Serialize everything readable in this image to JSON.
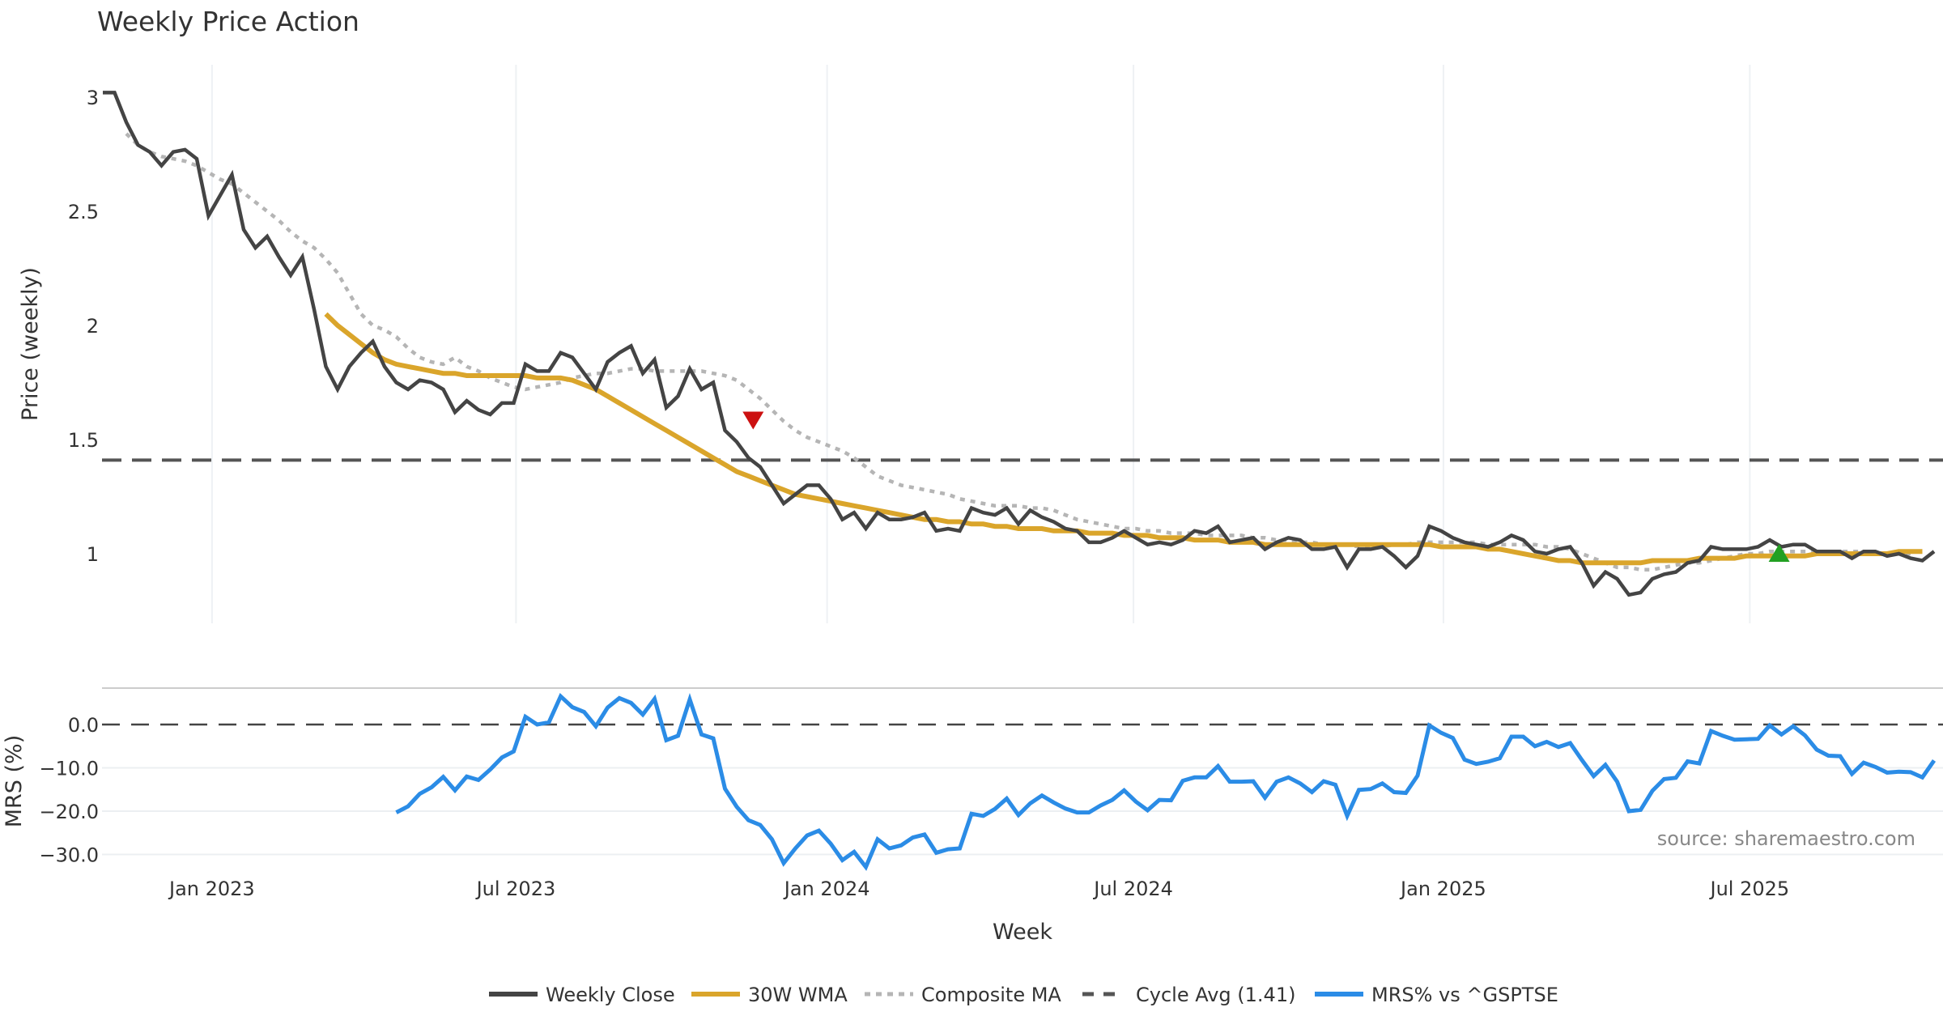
{
  "chart_data": {
    "type": "line",
    "title": "Weekly Price Action",
    "xlabel": "Week",
    "source": "source: sharemaestro.com",
    "start_week": "2022-10-24",
    "x_ticks": [
      {
        "label": "Jan 2023",
        "week": 9.3
      },
      {
        "label": "Jul 2023",
        "week": 35.2
      },
      {
        "label": "Jan 2024",
        "week": 61.7
      },
      {
        "label": "Jul 2024",
        "week": 87.8
      },
      {
        "label": "Jan 2025",
        "week": 114.2
      },
      {
        "label": "Jul 2025",
        "week": 140.3
      }
    ],
    "x_range": [
      0,
      157.4
    ],
    "price_panel": {
      "ylabel": "Price (weekly)",
      "ylim": [
        0.69,
        3.15
      ],
      "y_ticks": [
        {
          "label": "1",
          "value": 1
        },
        {
          "label": "1.5",
          "value": 1.5
        },
        {
          "label": "2",
          "value": 2
        },
        {
          "label": "2.5",
          "value": 2.5
        },
        {
          "label": "3",
          "value": 3
        }
      ],
      "series": [
        {
          "name": "Weekly Close",
          "color": "#444444",
          "style": "solid",
          "start": 0,
          "values": [
            3.02,
            3.02,
            2.89,
            2.79,
            2.76,
            2.7,
            2.76,
            2.77,
            2.73,
            2.48,
            2.57,
            2.66,
            2.42,
            2.34,
            2.39,
            2.3,
            2.22,
            2.3,
            2.07,
            1.82,
            1.72,
            1.82,
            1.88,
            1.93,
            1.82,
            1.75,
            1.72,
            1.76,
            1.75,
            1.72,
            1.62,
            1.67,
            1.63,
            1.61,
            1.66,
            1.66,
            1.83,
            1.8,
            1.8,
            1.88,
            1.86,
            1.79,
            1.72,
            1.84,
            1.88,
            1.91,
            1.79,
            1.85,
            1.64,
            1.69,
            1.81,
            1.72,
            1.75,
            1.54,
            1.49,
            1.42,
            1.38,
            1.3,
            1.22,
            1.26,
            1.3,
            1.3,
            1.24,
            1.15,
            1.18,
            1.11,
            1.18,
            1.15,
            1.15,
            1.16,
            1.18,
            1.1,
            1.11,
            1.1,
            1.2,
            1.18,
            1.17,
            1.2,
            1.13,
            1.19,
            1.16,
            1.14,
            1.11,
            1.1,
            1.05,
            1.05,
            1.07,
            1.1,
            1.07,
            1.04,
            1.05,
            1.04,
            1.06,
            1.1,
            1.09,
            1.12,
            1.05,
            1.06,
            1.07,
            1.02,
            1.05,
            1.07,
            1.06,
            1.02,
            1.02,
            1.03,
            0.94,
            1.02,
            1.02,
            1.03,
            0.99,
            0.94,
            0.99,
            1.12,
            1.1,
            1.07,
            1.05,
            1.04,
            1.03,
            1.05,
            1.08,
            1.06,
            1.01,
            1.0,
            1.02,
            1.03,
            0.96,
            0.86,
            0.92,
            0.89,
            0.82,
            0.83,
            0.89,
            0.91,
            0.92,
            0.96,
            0.97,
            1.03,
            1.02,
            1.02,
            1.02,
            1.03,
            1.06,
            1.03,
            1.04,
            1.04,
            1.01,
            1.01,
            1.01,
            0.98,
            1.01,
            1.01,
            0.99,
            1.0,
            0.98,
            0.97,
            1.01
          ]
        },
        {
          "name": "30W WMA",
          "color": "#DAA52B",
          "style": "solid",
          "start": 19,
          "values": [
            2.05,
            2.0,
            1.96,
            1.92,
            1.88,
            1.85,
            1.83,
            1.82,
            1.81,
            1.8,
            1.79,
            1.79,
            1.78,
            1.78,
            1.78,
            1.78,
            1.78,
            1.78,
            1.77,
            1.77,
            1.77,
            1.76,
            1.74,
            1.72,
            1.69,
            1.66,
            1.63,
            1.6,
            1.57,
            1.54,
            1.51,
            1.48,
            1.45,
            1.42,
            1.39,
            1.36,
            1.34,
            1.32,
            1.3,
            1.28,
            1.26,
            1.25,
            1.24,
            1.23,
            1.22,
            1.21,
            1.2,
            1.19,
            1.18,
            1.17,
            1.16,
            1.15,
            1.15,
            1.14,
            1.14,
            1.13,
            1.13,
            1.12,
            1.12,
            1.11,
            1.11,
            1.11,
            1.1,
            1.1,
            1.1,
            1.09,
            1.09,
            1.09,
            1.08,
            1.08,
            1.08,
            1.07,
            1.07,
            1.07,
            1.06,
            1.06,
            1.06,
            1.05,
            1.05,
            1.05,
            1.04,
            1.04,
            1.04,
            1.04,
            1.04,
            1.04,
            1.04,
            1.04,
            1.04,
            1.04,
            1.04,
            1.04,
            1.04,
            1.04,
            1.04,
            1.03,
            1.03,
            1.03,
            1.03,
            1.02,
            1.02,
            1.01,
            1.0,
            0.99,
            0.98,
            0.97,
            0.97,
            0.96,
            0.96,
            0.96,
            0.96,
            0.96,
            0.96,
            0.97,
            0.97,
            0.97,
            0.97,
            0.98,
            0.98,
            0.98,
            0.98,
            0.99,
            0.99,
            0.99,
            0.99,
            0.99,
            0.99,
            1.0,
            1.0,
            1.0,
            1.0,
            1.0,
            1.0,
            1.0,
            1.01,
            1.01,
            1.01
          ]
        },
        {
          "name": "Composite MA",
          "color": "#B5B5B5",
          "style": "dotted",
          "start": 2,
          "values": [
            2.84,
            2.79,
            2.76,
            2.74,
            2.73,
            2.72,
            2.7,
            2.67,
            2.64,
            2.62,
            2.58,
            2.54,
            2.5,
            2.46,
            2.41,
            2.37,
            2.34,
            2.29,
            2.23,
            2.14,
            2.05,
            2.0,
            1.98,
            1.95,
            1.9,
            1.86,
            1.84,
            1.83,
            1.86,
            1.82,
            1.8,
            1.77,
            1.75,
            1.73,
            1.72,
            1.73,
            1.74,
            1.75,
            1.77,
            1.78,
            1.79,
            1.79,
            1.8,
            1.81,
            1.81,
            1.8,
            1.8,
            1.8,
            1.8,
            1.8,
            1.79,
            1.78,
            1.76,
            1.72,
            1.68,
            1.63,
            1.58,
            1.54,
            1.51,
            1.49,
            1.47,
            1.45,
            1.42,
            1.38,
            1.34,
            1.32,
            1.3,
            1.29,
            1.28,
            1.27,
            1.26,
            1.24,
            1.23,
            1.22,
            1.21,
            1.21,
            1.21,
            1.2,
            1.2,
            1.19,
            1.17,
            1.15,
            1.14,
            1.13,
            1.12,
            1.11,
            1.11,
            1.1,
            1.1,
            1.09,
            1.09,
            1.09,
            1.08,
            1.08,
            1.08,
            1.08,
            1.07,
            1.07,
            1.06,
            1.06,
            1.05,
            1.05,
            1.04,
            1.04,
            1.04,
            1.03,
            1.03,
            1.03,
            1.04,
            1.04,
            1.05,
            1.05,
            1.05,
            1.05,
            1.05,
            1.05,
            1.04,
            1.04,
            1.04,
            1.04,
            1.04,
            1.03,
            1.03,
            1.02,
            1.0,
            0.98,
            0.96,
            0.94,
            0.94,
            0.93,
            0.93,
            0.94,
            0.95,
            0.96,
            0.96,
            0.97,
            0.98,
            0.99,
            1.0,
            1.0,
            1.01,
            1.01,
            1.01,
            1.01,
            1.01,
            1.01,
            1.01,
            1.01,
            1.01,
            1.0,
            1.0,
            1.0,
            1.0
          ]
        }
      ],
      "cycle_avg": {
        "name": "Cycle Avg (1.41)",
        "value": 1.41,
        "color": "#555555",
        "style": "dashed"
      },
      "markers": [
        {
          "type": "sell",
          "shape": "triangle-down",
          "week": 55.4,
          "value": 1.58,
          "color": "#CC1111"
        },
        {
          "type": "buy",
          "shape": "triangle-up",
          "week": 142.8,
          "value": 1.0,
          "color": "#22A022"
        }
      ]
    },
    "mrs_panel": {
      "ylabel": "MRS (%)",
      "ylim": [
        -33.5,
        8.5
      ],
      "y_ticks": [
        {
          "label": "0.0",
          "value": 0
        },
        {
          "label": "−10.0",
          "value": -10
        },
        {
          "label": "−20.0",
          "value": -20
        },
        {
          "label": "−30.0",
          "value": -30
        }
      ],
      "zero_line": 0,
      "series": {
        "name": "MRS% vs ^GSPTSE",
        "color": "#2B8CE6",
        "start": 25,
        "values": [
          -20.3,
          -18.9,
          -16.0,
          -14.5,
          -12.1,
          -15.2,
          -12.0,
          -12.8,
          -10.4,
          -7.6,
          -6.2,
          1.8,
          0.0,
          0.5,
          6.5,
          4.0,
          2.9,
          -0.4,
          3.9,
          6.1,
          5.0,
          2.3,
          5.9,
          -3.6,
          -2.6,
          5.8,
          -2.3,
          -3.2,
          -14.8,
          -19.0,
          -22.1,
          -23.2,
          -26.5,
          -32.0,
          -28.6,
          -25.6,
          -24.5,
          -27.5,
          -31.3,
          -29.4,
          -32.9,
          -26.5,
          -28.6,
          -27.9,
          -26.1,
          -25.4,
          -29.6,
          -28.8,
          -28.6,
          -20.6,
          -21.1,
          -19.5,
          -17.1,
          -20.9,
          -18.2,
          -16.4,
          -18.0,
          -19.4,
          -20.3,
          -20.3,
          -18.7,
          -17.4,
          -15.2,
          -17.8,
          -19.8,
          -17.4,
          -17.5,
          -13.0,
          -12.2,
          -12.2,
          -9.6,
          -13.2,
          -13.2,
          -13.1,
          -16.9,
          -13.2,
          -12.2,
          -13.6,
          -15.6,
          -13.1,
          -13.9,
          -21.1,
          -15.1,
          -14.9,
          -13.6,
          -15.6,
          -15.8,
          -11.8,
          -0.2,
          -1.9,
          -3.1,
          -8.1,
          -9.1,
          -8.6,
          -7.8,
          -2.8,
          -2.8,
          -5.0,
          -4.0,
          -5.2,
          -4.3,
          -8.2,
          -11.9,
          -9.3,
          -13.2,
          -20.0,
          -19.7,
          -15.3,
          -12.6,
          -12.3,
          -8.5,
          -9.0,
          -1.5,
          -2.6,
          -3.5,
          -3.4,
          -3.3,
          -0.2,
          -2.3,
          -0.4,
          -2.5,
          -5.8,
          -7.2,
          -7.3,
          -11.4,
          -8.8,
          -9.8,
          -11.1,
          -10.9,
          -11.0,
          -12.2,
          -8.3
        ]
      }
    },
    "legend": {
      "position": "bottom-center",
      "entries": [
        {
          "label": "Weekly Close",
          "color": "#444444",
          "style": "solid"
        },
        {
          "label": "30W WMA",
          "color": "#DAA52B",
          "style": "solid"
        },
        {
          "label": "Composite MA",
          "color": "#B5B5B5",
          "style": "dotted"
        },
        {
          "label": "Cycle Avg (1.41)",
          "color": "#555555",
          "style": "dashed"
        },
        {
          "label": "MRS% vs ^GSPTSE",
          "color": "#2B8CE6",
          "style": "solid"
        }
      ]
    }
  }
}
